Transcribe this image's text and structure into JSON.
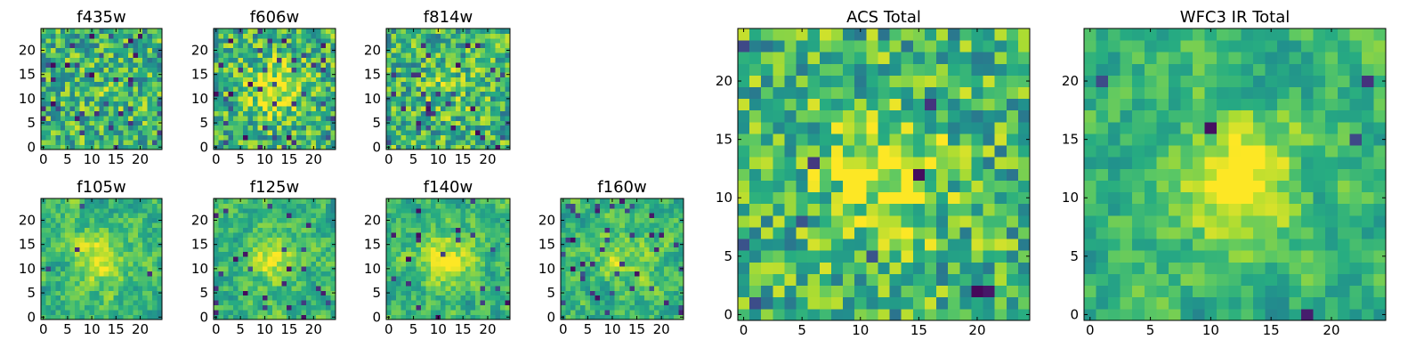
{
  "chart_data": [
    {
      "type": "heatmap",
      "title": "f435w",
      "xlim": [
        -0.5,
        24.5
      ],
      "ylim": [
        -0.5,
        24.5
      ],
      "xticks": [
        0,
        5,
        10,
        15,
        20
      ],
      "yticks": [
        0,
        5,
        10,
        15,
        20
      ],
      "seed": 11,
      "center_boost": 0.05,
      "smooth": 0,
      "dark_fraction": 0.07
    },
    {
      "type": "heatmap",
      "title": "f606w",
      "xlim": [
        -0.5,
        24.5
      ],
      "ylim": [
        -0.5,
        24.5
      ],
      "xticks": [
        0,
        5,
        10,
        15,
        20
      ],
      "yticks": [
        0,
        5,
        10,
        15,
        20
      ],
      "seed": 23,
      "center_boost": 0.35,
      "smooth": 0,
      "dark_fraction": 0.06
    },
    {
      "type": "heatmap",
      "title": "f814w",
      "xlim": [
        -0.5,
        24.5
      ],
      "ylim": [
        -0.5,
        24.5
      ],
      "xticks": [
        0,
        5,
        10,
        15,
        20
      ],
      "yticks": [
        0,
        5,
        10,
        15,
        20
      ],
      "seed": 37,
      "center_boost": 0.1,
      "smooth": 0,
      "dark_fraction": 0.05
    },
    {
      "type": "heatmap",
      "title": "f105w",
      "xlim": [
        -0.5,
        24.5
      ],
      "ylim": [
        -0.5,
        24.5
      ],
      "xticks": [
        0,
        5,
        10,
        15,
        20
      ],
      "yticks": [
        0,
        5,
        10,
        15,
        20
      ],
      "seed": 41,
      "center_boost": 0.3,
      "smooth": 1,
      "dark_fraction": 0.01
    },
    {
      "type": "heatmap",
      "title": "f125w",
      "xlim": [
        -0.5,
        24.5
      ],
      "ylim": [
        -0.5,
        24.5
      ],
      "xticks": [
        0,
        5,
        10,
        15,
        20
      ],
      "yticks": [
        0,
        5,
        10,
        15,
        20
      ],
      "seed": 53,
      "center_boost": 0.25,
      "smooth": 1,
      "dark_fraction": 0.03
    },
    {
      "type": "heatmap",
      "title": "f140w",
      "xlim": [
        -0.5,
        24.5
      ],
      "ylim": [
        -0.5,
        24.5
      ],
      "xticks": [
        0,
        5,
        10,
        15,
        20
      ],
      "yticks": [
        0,
        5,
        10,
        15,
        20
      ],
      "seed": 67,
      "center_boost": 0.3,
      "smooth": 1,
      "dark_fraction": 0.02
    },
    {
      "type": "heatmap",
      "title": "f160w",
      "xlim": [
        -0.5,
        24.5
      ],
      "ylim": [
        -0.5,
        24.5
      ],
      "xticks": [
        0,
        5,
        10,
        15,
        20
      ],
      "yticks": [
        0,
        5,
        10,
        15,
        20
      ],
      "seed": 79,
      "center_boost": 0.2,
      "smooth": 1,
      "dark_fraction": 0.06
    },
    {
      "type": "heatmap",
      "title": "ACS Total",
      "xlim": [
        -0.5,
        24.5
      ],
      "ylim": [
        -0.5,
        24.5
      ],
      "xticks": [
        0,
        5,
        10,
        15,
        20
      ],
      "yticks": [
        0,
        5,
        10,
        15,
        20
      ],
      "seed": 97,
      "center_boost": 0.3,
      "smooth": 0,
      "dark_fraction": 0.02
    },
    {
      "type": "heatmap",
      "title": "WFC3 IR Total",
      "xlim": [
        -0.5,
        24.5
      ],
      "ylim": [
        -0.5,
        24.5
      ],
      "xticks": [
        0,
        5,
        10,
        15,
        20
      ],
      "yticks": [
        0,
        5,
        10,
        15,
        20
      ],
      "seed": 101,
      "center_boost": 0.35,
      "smooth": 1,
      "dark_fraction": 0.015
    }
  ]
}
